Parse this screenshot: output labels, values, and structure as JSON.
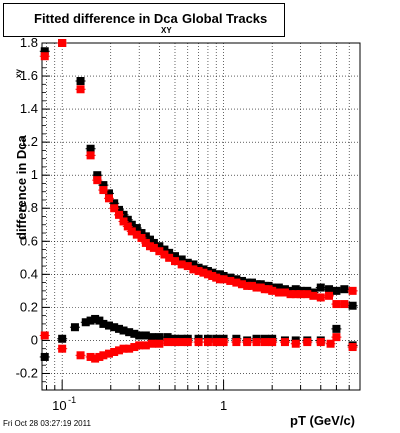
{
  "title": {
    "main": "Fitted difference in Dca",
    "sub": "XY",
    "tail": "Global Tracks"
  },
  "ylabel": {
    "main": "difference in Dca",
    "sub": "xy"
  },
  "xlabel": "pT (GeV/c)",
  "timestamp": "Fri Oct 28 03:27:19 2011",
  "chart_data": {
    "type": "scatter",
    "title": "Fitted difference in Dca XY Global Tracks",
    "xlabel": "pT (GeV/c)",
    "ylabel": "difference in Dca xy",
    "xscale": "log",
    "xlim": [
      0.075,
      7.0
    ],
    "ylim": [
      -0.3,
      1.8
    ],
    "grid": true,
    "yticks": [
      -0.2,
      0,
      0.2,
      0.4,
      0.6,
      0.8,
      1,
      1.2,
      1.4,
      1.6,
      1.8
    ],
    "ytick_labels": [
      "-0.2",
      "0",
      "0.2",
      "0.4",
      "0.6",
      "0.8",
      "1",
      "1.2",
      "1.4",
      "1.6",
      "1.8"
    ],
    "xticks": [
      0.1,
      1
    ],
    "xtick_labels": [
      "10^-1",
      "1"
    ],
    "series": [
      {
        "color": "#000000",
        "x": [
          0.078,
          0.1,
          0.13,
          0.15,
          0.165,
          0.18,
          0.195,
          0.21,
          0.225,
          0.24,
          0.255,
          0.27,
          0.29,
          0.31,
          0.33,
          0.35,
          0.37,
          0.4,
          0.43,
          0.46,
          0.5,
          0.55,
          0.6,
          0.65,
          0.7,
          0.75,
          0.8,
          0.85,
          0.9,
          0.95,
          1.0,
          1.1,
          1.2,
          1.3,
          1.4,
          1.5,
          1.6,
          1.7,
          1.8,
          1.9,
          2.0,
          2.2,
          2.4,
          2.6,
          2.8,
          3.0,
          3.3,
          3.6,
          4.0,
          4.5,
          5.0,
          5.6,
          6.3
        ],
        "y": [
          1.75,
          1.8,
          1.57,
          1.16,
          1.0,
          0.94,
          0.89,
          0.83,
          0.79,
          0.76,
          0.73,
          0.7,
          0.68,
          0.65,
          0.63,
          0.61,
          0.59,
          0.57,
          0.55,
          0.53,
          0.51,
          0.49,
          0.47,
          0.46,
          0.44,
          0.43,
          0.42,
          0.41,
          0.4,
          0.4,
          0.39,
          0.38,
          0.37,
          0.36,
          0.35,
          0.35,
          0.34,
          0.34,
          0.33,
          0.33,
          0.32,
          0.32,
          0.31,
          0.3,
          0.31,
          0.3,
          0.3,
          0.29,
          0.32,
          0.31,
          0.3,
          0.31,
          0.21
        ]
      },
      {
        "color": "#ff0000",
        "x": [
          0.078,
          0.1,
          0.13,
          0.15,
          0.165,
          0.18,
          0.195,
          0.21,
          0.225,
          0.24,
          0.255,
          0.27,
          0.29,
          0.31,
          0.33,
          0.35,
          0.37,
          0.4,
          0.43,
          0.46,
          0.5,
          0.55,
          0.6,
          0.65,
          0.7,
          0.75,
          0.8,
          0.85,
          0.9,
          0.95,
          1.0,
          1.1,
          1.2,
          1.3,
          1.4,
          1.5,
          1.6,
          1.7,
          1.8,
          1.9,
          2.0,
          2.2,
          2.4,
          2.6,
          2.8,
          3.0,
          3.3,
          3.6,
          4.0,
          4.5,
          5.0,
          5.6,
          6.3
        ],
        "y": [
          1.72,
          1.8,
          1.52,
          1.12,
          0.97,
          0.91,
          0.86,
          0.8,
          0.76,
          0.72,
          0.69,
          0.66,
          0.64,
          0.62,
          0.59,
          0.57,
          0.56,
          0.54,
          0.52,
          0.5,
          0.48,
          0.46,
          0.45,
          0.43,
          0.42,
          0.41,
          0.4,
          0.39,
          0.38,
          0.37,
          0.37,
          0.36,
          0.35,
          0.34,
          0.33,
          0.33,
          0.32,
          0.32,
          0.31,
          0.31,
          0.3,
          0.29,
          0.29,
          0.28,
          0.28,
          0.28,
          0.28,
          0.27,
          0.26,
          0.27,
          0.22,
          0.22,
          0.3
        ]
      },
      {
        "color": "#000000",
        "x": [
          0.078,
          0.1,
          0.12,
          0.14,
          0.15,
          0.16,
          0.17,
          0.18,
          0.195,
          0.21,
          0.225,
          0.24,
          0.26,
          0.28,
          0.3,
          0.33,
          0.36,
          0.4,
          0.45,
          0.5,
          0.55,
          0.6,
          0.7,
          0.8,
          0.9,
          1.0,
          1.2,
          1.4,
          1.6,
          1.8,
          2.0,
          2.4,
          2.8,
          3.3,
          4.0,
          5.0,
          6.3
        ],
        "y": [
          -0.1,
          0.01,
          0.08,
          0.11,
          0.12,
          0.13,
          0.12,
          0.1,
          0.09,
          0.08,
          0.07,
          0.06,
          0.05,
          0.04,
          0.03,
          0.03,
          0.02,
          0.02,
          0.02,
          0.01,
          0.01,
          0.01,
          0.01,
          0.01,
          0.01,
          0.01,
          0.01,
          0.0,
          0.01,
          0.01,
          0.01,
          0.0,
          0.0,
          0.0,
          0.0,
          0.07,
          -0.03
        ]
      },
      {
        "color": "#ff0000",
        "x": [
          0.078,
          0.1,
          0.13,
          0.15,
          0.16,
          0.17,
          0.18,
          0.195,
          0.21,
          0.225,
          0.24,
          0.26,
          0.28,
          0.3,
          0.33,
          0.36,
          0.4,
          0.45,
          0.5,
          0.55,
          0.6,
          0.7,
          0.8,
          0.9,
          1.0,
          1.2,
          1.4,
          1.6,
          1.8,
          2.0,
          2.4,
          2.8,
          3.3,
          4.0,
          4.6,
          5.0,
          6.3
        ],
        "y": [
          0.03,
          -0.05,
          -0.09,
          -0.1,
          -0.11,
          -0.1,
          -0.09,
          -0.08,
          -0.07,
          -0.06,
          -0.05,
          -0.05,
          -0.04,
          -0.03,
          -0.03,
          -0.02,
          -0.02,
          -0.01,
          -0.01,
          -0.01,
          -0.01,
          -0.01,
          -0.01,
          -0.01,
          -0.01,
          -0.01,
          -0.01,
          -0.01,
          -0.01,
          -0.01,
          -0.01,
          -0.02,
          -0.01,
          -0.01,
          -0.02,
          0.02,
          -0.04
        ]
      }
    ]
  }
}
